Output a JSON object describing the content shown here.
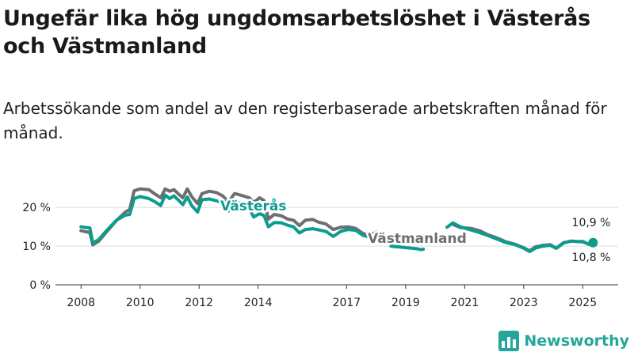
{
  "title": "Ungefär lika hög ungdomsarbetslöshet i Västerås och Västmanland",
  "subtitle": "Arbetssökande som andel av den registerbaserade arbetskraften månad för månad.",
  "brand": {
    "name": "Newsworthy"
  },
  "colors": {
    "vasteras": "#0c9c8e",
    "vastmanland": "#6e6e72",
    "grid": "#dddddd",
    "axis": "#333333"
  },
  "chart_data": {
    "type": "line",
    "x_ticks": [
      "2008",
      "2010",
      "2012",
      "2014",
      "2017",
      "2019",
      "2021",
      "2023",
      "2025"
    ],
    "x_tick_values": [
      2008,
      2010,
      2012,
      2014,
      2017,
      2019,
      2021,
      2023,
      2025
    ],
    "y_ticks": [
      "0 %",
      "10 %",
      "20 %"
    ],
    "y_tick_values": [
      0,
      10,
      20
    ],
    "xlim": [
      2007.0,
      2026.2
    ],
    "ylim": [
      0,
      27
    ],
    "grid": true,
    "series": [
      {
        "name": "Västerås",
        "key": "vasteras",
        "end_label": "10,9 %",
        "points": [
          [
            2008.0,
            15
          ],
          [
            2008.3,
            14.7
          ],
          [
            2008.4,
            10.8
          ],
          [
            2008.6,
            11.7
          ],
          [
            2008.9,
            14.3
          ],
          [
            2009.2,
            16.7
          ],
          [
            2009.5,
            18
          ],
          [
            2009.65,
            18.2
          ],
          [
            2009.8,
            22.3
          ],
          [
            2010.0,
            22.8
          ],
          [
            2010.3,
            22.3
          ],
          [
            2010.5,
            21.5
          ],
          [
            2010.7,
            20.5
          ],
          [
            2010.85,
            23.2
          ],
          [
            2011.0,
            22.3
          ],
          [
            2011.15,
            23
          ],
          [
            2011.3,
            21.9
          ],
          [
            2011.45,
            20.7
          ],
          [
            2011.6,
            22.7
          ],
          [
            2011.75,
            20.5
          ],
          [
            2011.95,
            18.8
          ],
          [
            2012.1,
            22
          ],
          [
            2012.35,
            22.2
          ],
          [
            2012.6,
            21.7
          ],
          [
            2012.8,
            21.2
          ],
          [
            2013.0,
            19.1
          ],
          [
            2013.2,
            21.7
          ],
          [
            2013.4,
            21
          ],
          [
            2013.7,
            19.8
          ],
          [
            2013.85,
            17.5
          ],
          [
            2014.05,
            18.4
          ],
          [
            2014.2,
            17.9
          ],
          [
            2014.35,
            15
          ],
          [
            2014.55,
            16.1
          ],
          [
            2014.8,
            16
          ],
          [
            2015.0,
            15.4
          ],
          [
            2015.2,
            15
          ],
          [
            2015.4,
            13.4
          ],
          [
            2015.6,
            14.3
          ],
          [
            2015.85,
            14.5
          ],
          [
            2016.05,
            14.2
          ],
          [
            2016.3,
            13.8
          ],
          [
            2016.55,
            12.5
          ],
          [
            2016.8,
            13.8
          ],
          [
            2017.05,
            14.3
          ],
          [
            2017.3,
            14.1
          ],
          [
            2017.55,
            12.8
          ],
          [
            2017.75,
            12.4
          ],
          [
            2017.95,
            12.5
          ]
        ],
        "points_b": [
          [
            2018.5,
            10
          ],
          [
            2019.4,
            9.3
          ],
          [
            2019.5,
            9.1
          ],
          [
            2019.6,
            9.2
          ]
        ],
        "points_c": [
          [
            2020.4,
            14.9
          ],
          [
            2020.6,
            16
          ],
          [
            2020.85,
            15
          ],
          [
            2021.2,
            14.2
          ],
          [
            2021.5,
            13.5
          ],
          [
            2021.8,
            12.7
          ],
          [
            2022.1,
            11.8
          ],
          [
            2022.4,
            10.9
          ],
          [
            2022.7,
            10.4
          ],
          [
            2023.0,
            9.5
          ],
          [
            2023.2,
            8.6
          ],
          [
            2023.4,
            9.5
          ],
          [
            2023.65,
            10
          ],
          [
            2023.9,
            10.2
          ],
          [
            2024.1,
            9.4
          ],
          [
            2024.35,
            10.8
          ],
          [
            2024.6,
            11.3
          ],
          [
            2024.8,
            11.2
          ],
          [
            2025.0,
            11.1
          ],
          [
            2025.2,
            10.5
          ],
          [
            2025.35,
            10.9
          ]
        ]
      },
      {
        "name": "Västmanland",
        "key": "vastmanland",
        "end_label": "10,8 %",
        "points": [
          [
            2008.0,
            14
          ],
          [
            2008.3,
            13.5
          ],
          [
            2008.4,
            10.3
          ],
          [
            2008.6,
            11.3
          ],
          [
            2008.9,
            14
          ],
          [
            2009.2,
            16.6
          ],
          [
            2009.5,
            18.8
          ],
          [
            2009.65,
            19.5
          ],
          [
            2009.8,
            24.3
          ],
          [
            2010.0,
            24.8
          ],
          [
            2010.3,
            24.6
          ],
          [
            2010.5,
            23.5
          ],
          [
            2010.7,
            22.5
          ],
          [
            2010.85,
            24.8
          ],
          [
            2011.0,
            24.2
          ],
          [
            2011.15,
            24.6
          ],
          [
            2011.3,
            23.5
          ],
          [
            2011.45,
            22.5
          ],
          [
            2011.6,
            24.8
          ],
          [
            2011.75,
            22.8
          ],
          [
            2011.95,
            21
          ],
          [
            2012.1,
            23.6
          ],
          [
            2012.35,
            24.2
          ],
          [
            2012.6,
            23.8
          ],
          [
            2012.8,
            23
          ],
          [
            2013.0,
            21.4
          ],
          [
            2013.2,
            23.6
          ],
          [
            2013.4,
            23.2
          ],
          [
            2013.7,
            22.5
          ],
          [
            2013.85,
            21.3
          ],
          [
            2014.05,
            22.5
          ],
          [
            2014.2,
            21.8
          ],
          [
            2014.35,
            17
          ],
          [
            2014.55,
            18.2
          ],
          [
            2014.8,
            17.8
          ],
          [
            2015.0,
            17
          ],
          [
            2015.2,
            16.7
          ],
          [
            2015.4,
            15.3
          ],
          [
            2015.6,
            16.7
          ],
          [
            2015.85,
            16.9
          ],
          [
            2016.05,
            16.2
          ],
          [
            2016.3,
            15.7
          ],
          [
            2016.55,
            14.3
          ],
          [
            2016.8,
            14.9
          ],
          [
            2017.05,
            15
          ],
          [
            2017.3,
            14.6
          ],
          [
            2017.55,
            13.3
          ],
          [
            2017.75,
            12.8
          ],
          [
            2018.0,
            13.6
          ]
        ],
        "points_b": [],
        "points_c": [
          [
            2020.6,
            15.6
          ],
          [
            2020.85,
            14.8
          ],
          [
            2021.2,
            14.6
          ],
          [
            2021.5,
            14
          ],
          [
            2021.8,
            12.9
          ],
          [
            2022.1,
            12.1
          ],
          [
            2022.4,
            11.1
          ],
          [
            2022.7,
            10.5
          ],
          [
            2023.0,
            9.6
          ],
          [
            2023.2,
            8.8
          ],
          [
            2023.4,
            9.8
          ],
          [
            2023.65,
            10.2
          ],
          [
            2023.9,
            10.4
          ],
          [
            2024.1,
            9.5
          ],
          [
            2024.35,
            10.9
          ],
          [
            2024.6,
            11.3
          ],
          [
            2024.8,
            11.2
          ],
          [
            2025.0,
            11.2
          ],
          [
            2025.2,
            10.5
          ],
          [
            2025.35,
            10.8
          ]
        ]
      }
    ]
  }
}
